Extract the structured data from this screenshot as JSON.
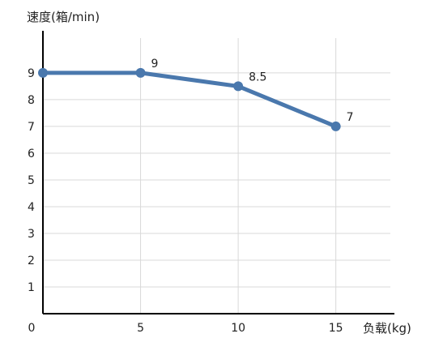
{
  "chart_data": {
    "type": "line",
    "ylabel": "速度(箱/min)",
    "xlabel": "负载(kg)",
    "x": [
      0,
      5,
      10,
      15
    ],
    "x_ticks": [
      0,
      5,
      10,
      15
    ],
    "y_ticks": [
      1,
      2,
      3,
      4,
      5,
      6,
      7,
      8,
      9
    ],
    "xlim": [
      0,
      18
    ],
    "ylim": [
      0,
      10.3
    ],
    "grid": true,
    "series": [
      {
        "values": [
          9,
          9,
          8.5,
          7
        ],
        "data_labels": [
          "",
          "9",
          "8.5",
          "7"
        ]
      }
    ],
    "colors": {
      "line": "#4a78ad",
      "grid": "#d9d9d9",
      "axis": "#000000"
    }
  }
}
